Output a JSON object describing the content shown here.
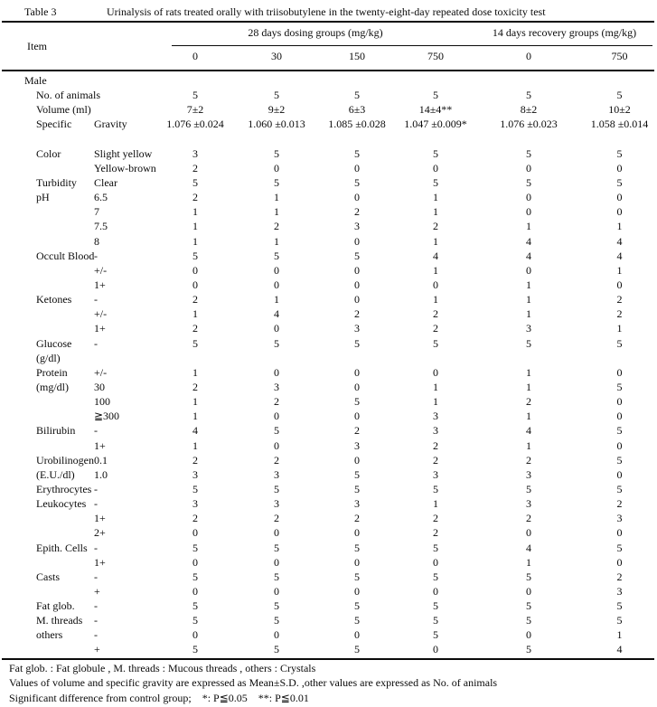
{
  "page": {
    "background": "#ffffff",
    "text_color": "#0a0a0a"
  },
  "title": {
    "label": "Table 3",
    "text": "Urinalysis of rats treated orally with triisobutylene in the twenty-eight-day repeated dose toxicity test"
  },
  "header": {
    "item_label": "Item",
    "dosing_group_label": "28 days dosing groups (mg/kg)",
    "recovery_group_label": "14 days recovery groups (mg/kg)",
    "doses": [
      "0",
      "30",
      "150",
      "750",
      "0",
      "750"
    ]
  },
  "table": {
    "section_label": "Male",
    "rows": [
      {
        "item": "No. of animals",
        "sub": "",
        "values": [
          "5",
          "5",
          "5",
          "5",
          "5",
          "5"
        ]
      },
      {
        "item": "Volume (ml)",
        "sub": "",
        "values": [
          "7±2",
          "9±2",
          "6±3",
          "14±4**",
          "8±2",
          "10±2"
        ]
      },
      {
        "item": "Specific",
        "sub": "Gravity",
        "values": [
          "1.076 ±0.024",
          "1.060 ±0.013",
          "1.085 ±0.028",
          "1.047 ±0.009*",
          "1.076 ±0.023",
          "1.058 ±0.014"
        ]
      },
      {
        "blank": true,
        "item": "",
        "sub": "",
        "values": []
      },
      {
        "item": "Color",
        "sub": "Slight yellow",
        "values": [
          "3",
          "5",
          "5",
          "5",
          "5",
          "5"
        ]
      },
      {
        "item": "",
        "sub": "Yellow-brown",
        "values": [
          "2",
          "0",
          "0",
          "0",
          "0",
          "0"
        ]
      },
      {
        "item": "Turbidity",
        "sub": "Clear",
        "values": [
          "5",
          "5",
          "5",
          "5",
          "5",
          "5"
        ]
      },
      {
        "item": "pH",
        "sub": "6.5",
        "values": [
          "2",
          "1",
          "0",
          "1",
          "0",
          "0"
        ]
      },
      {
        "item": "",
        "sub": "7",
        "values": [
          "1",
          "1",
          "2",
          "1",
          "0",
          "0"
        ]
      },
      {
        "item": "",
        "sub": "7.5",
        "values": [
          "1",
          "2",
          "3",
          "2",
          "1",
          "1"
        ]
      },
      {
        "item": "",
        "sub": "8",
        "values": [
          "1",
          "1",
          "0",
          "1",
          "4",
          "4"
        ]
      },
      {
        "item": "Occult Blood",
        "sub": "-",
        "values": [
          "5",
          "5",
          "5",
          "4",
          "4",
          "4"
        ]
      },
      {
        "item": "",
        "sub": "+/-",
        "values": [
          "0",
          "0",
          "0",
          "1",
          "0",
          "1"
        ]
      },
      {
        "item": "",
        "sub": "1+",
        "values": [
          "0",
          "0",
          "0",
          "0",
          "1",
          "0"
        ]
      },
      {
        "item": "Ketones",
        "sub": "-",
        "values": [
          "2",
          "1",
          "0",
          "1",
          "1",
          "2"
        ]
      },
      {
        "item": "",
        "sub": "+/-",
        "values": [
          "1",
          "4",
          "2",
          "2",
          "1",
          "2"
        ]
      },
      {
        "item": "",
        "sub": "1+",
        "values": [
          "2",
          "0",
          "3",
          "2",
          "3",
          "1"
        ]
      },
      {
        "item": "Glucose",
        "sub": "-",
        "values": [
          "5",
          "5",
          "5",
          "5",
          "5",
          "5"
        ]
      },
      {
        "item": "(g/dl)",
        "sub": "",
        "values": []
      },
      {
        "item": "Protein",
        "sub": "+/-",
        "values": [
          "1",
          "0",
          "0",
          "0",
          "1",
          "0"
        ]
      },
      {
        "item": "(mg/dl)",
        "sub": "30",
        "values": [
          "2",
          "3",
          "0",
          "1",
          "1",
          "5"
        ]
      },
      {
        "item": "",
        "sub": "100",
        "values": [
          "1",
          "2",
          "5",
          "1",
          "2",
          "0"
        ]
      },
      {
        "item": "",
        "sub": "≧300",
        "values": [
          "1",
          "0",
          "0",
          "3",
          "1",
          "0"
        ]
      },
      {
        "item": "Bilirubin",
        "sub": "-",
        "values": [
          "4",
          "5",
          "2",
          "3",
          "4",
          "5"
        ]
      },
      {
        "item": "",
        "sub": "1+",
        "values": [
          "1",
          "0",
          "3",
          "2",
          "1",
          "0"
        ]
      },
      {
        "item": "Urobilinogen",
        "sub": "0.1",
        "values": [
          "2",
          "2",
          "0",
          "2",
          "2",
          "5"
        ]
      },
      {
        "item": "(E.U./dl)",
        "sub": "1.0",
        "values": [
          "3",
          "3",
          "5",
          "3",
          "3",
          "0"
        ]
      },
      {
        "item": "Erythrocytes",
        "sub": "-",
        "values": [
          "5",
          "5",
          "5",
          "5",
          "5",
          "5"
        ]
      },
      {
        "item": "Leukocytes",
        "sub": "-",
        "values": [
          "3",
          "3",
          "3",
          "1",
          "3",
          "2"
        ]
      },
      {
        "item": "",
        "sub": "1+",
        "values": [
          "2",
          "2",
          "2",
          "2",
          "2",
          "3"
        ]
      },
      {
        "item": "",
        "sub": "2+",
        "values": [
          "0",
          "0",
          "0",
          "2",
          "0",
          "0"
        ]
      },
      {
        "item": "Epith. Cells",
        "sub": "-",
        "values": [
          "5",
          "5",
          "5",
          "5",
          "4",
          "5"
        ]
      },
      {
        "item": "",
        "sub": "1+",
        "values": [
          "0",
          "0",
          "0",
          "0",
          "1",
          "0"
        ]
      },
      {
        "item": "Casts",
        "sub": "-",
        "values": [
          "5",
          "5",
          "5",
          "5",
          "5",
          "2"
        ]
      },
      {
        "item": "",
        "sub": "+",
        "values": [
          "0",
          "0",
          "0",
          "0",
          "0",
          "3"
        ]
      },
      {
        "item": "Fat glob.",
        "sub": "-",
        "values": [
          "5",
          "5",
          "5",
          "5",
          "5",
          "5"
        ]
      },
      {
        "item": "M. threads",
        "sub": "-",
        "values": [
          "5",
          "5",
          "5",
          "5",
          "5",
          "5"
        ]
      },
      {
        "item": "others",
        "sub": "-",
        "values": [
          "0",
          "0",
          "0",
          "5",
          "0",
          "1"
        ]
      },
      {
        "item": "",
        "sub": "+",
        "values": [
          "5",
          "5",
          "5",
          "0",
          "5",
          "4"
        ]
      }
    ]
  },
  "footnotes": [
    "Fat glob. : Fat globule , M. threads : Mucous threads , others : Crystals",
    "Values of volume and specific gravity are expressed as Mean±S.D. ,other values are expressed as No. of animals",
    "Significant difference from control group;    *: P≦0.05    **: P≦0.01"
  ]
}
